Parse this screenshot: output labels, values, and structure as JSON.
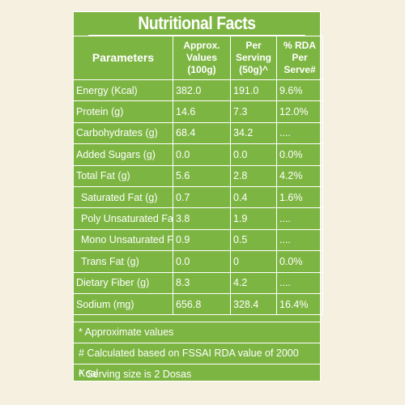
{
  "title": "Nutritional Facts",
  "headers": {
    "parameters": "Parameters",
    "approx": "Approx. Values (100g)",
    "per_serving": "Per Serving (50g)^",
    "rda": "% RDA Per Serve#"
  },
  "rows": [
    {
      "name": "Energy (Kcal)",
      "approx": "382.0",
      "serving": "191.0",
      "rda": "9.6%"
    },
    {
      "name": "Protein (g)",
      "approx": "14.6",
      "serving": "7.3",
      "rda": "12.0%"
    },
    {
      "name": "Carbohydrates (g)",
      "approx": "68.4",
      "serving": "34.2",
      "rda": "...."
    },
    {
      "name": "Added Sugars (g)",
      "approx": "0.0",
      "serving": "0.0",
      "rda": "0.0%"
    },
    {
      "name": "Total Fat (g)",
      "approx": "5.6",
      "serving": "2.8",
      "rda": "4.2%"
    },
    {
      "name": "Saturated Fat (g)",
      "approx": "0.7",
      "serving": "0.4",
      "rda": "1.6%"
    },
    {
      "name": "Poly Unsaturated Fat (g)",
      "approx": "3.8",
      "serving": "1.9",
      "rda": "...."
    },
    {
      "name": "Mono Unsaturated Fat (g)",
      "approx": "0.9",
      "serving": "0.5",
      "rda": "...."
    },
    {
      "name": "Trans Fat (g)",
      "approx": "0.0",
      "serving": "0",
      "rda": "0.0%"
    },
    {
      "name": "Dietary Fiber (g)",
      "approx": "8.3",
      "serving": "4.2",
      "rda": "...."
    },
    {
      "name": "Sodium (mg)",
      "approx": "656.8",
      "serving": "328.4",
      "rda": "16.4%"
    }
  ],
  "footnotes": [
    "* Approximate values",
    "# Calculated based on FSSAI RDA value of 2000 Kcal",
    "^ Serving size is 2 Dosas"
  ],
  "colors": {
    "panel": "#7db543",
    "background": "#f5f0e0",
    "text": "#ffffff"
  }
}
